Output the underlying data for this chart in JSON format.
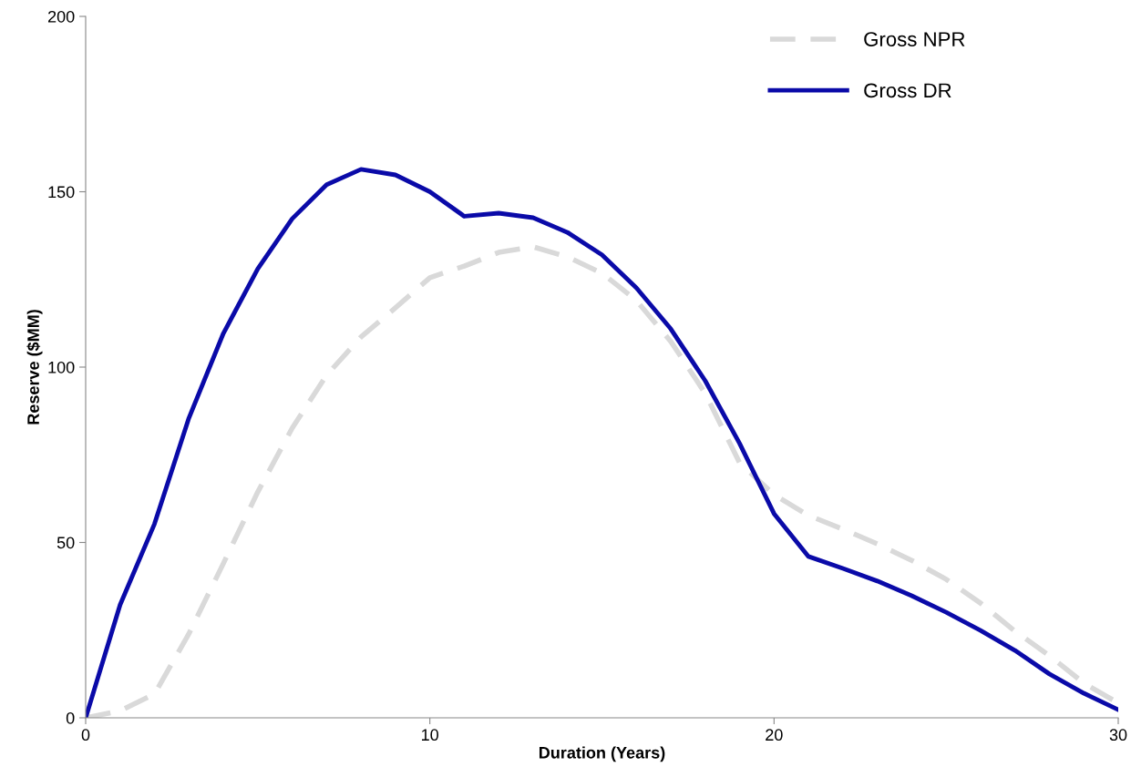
{
  "chart_data": {
    "type": "line",
    "xlabel": "Duration (Years)",
    "ylabel": "Reserve ($MM)",
    "x": [
      0,
      1,
      2,
      3,
      4,
      5,
      6,
      7,
      8,
      9,
      10,
      11,
      12,
      13,
      14,
      15,
      16,
      17,
      18,
      19,
      20,
      21,
      22,
      23,
      24,
      25,
      26,
      27,
      28,
      29,
      30
    ],
    "series": [
      {
        "name": "Gross NPR",
        "color": "#d9d9d9",
        "line_style": "dashed",
        "values": [
          0,
          2,
          6.8,
          24,
          44,
          64.4,
          82.6,
          97.7,
          108.6,
          116.9,
          125.5,
          128.8,
          132.7,
          134.3,
          131.4,
          126.8,
          119,
          107.3,
          92.5,
          72.7,
          63.6,
          57.7,
          53.8,
          49.6,
          44.9,
          39.5,
          32.7,
          24.7,
          17.7,
          9.9,
          4.2
        ]
      },
      {
        "name": "Gross DR",
        "color": "#0a0aa8",
        "line_style": "solid",
        "values": [
          0,
          32.2,
          55.3,
          85.5,
          109.6,
          128,
          142.3,
          152,
          156.4,
          154.8,
          150,
          143,
          143.9,
          142.6,
          138.4,
          132,
          122.6,
          110.9,
          96.1,
          78.2,
          58.2,
          46,
          42.6,
          39,
          34.8,
          30.1,
          24.9,
          19.2,
          12.5,
          7,
          2.3
        ]
      }
    ],
    "xlim": [
      0,
      30
    ],
    "xticks": [
      0,
      10,
      20,
      30
    ],
    "ylim": [
      0,
      200
    ],
    "yticks": [
      0,
      50,
      100,
      150,
      200
    ],
    "grid": false,
    "legend": "top right",
    "marker": "none"
  }
}
